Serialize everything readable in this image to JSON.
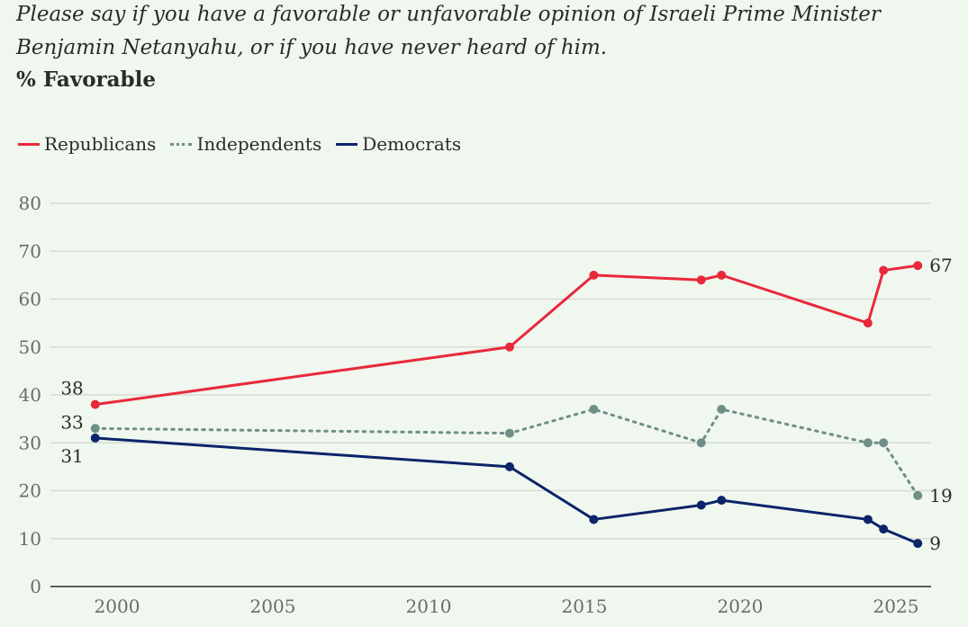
{
  "question": "Please say if you have a favorable or unfavorable opinion of Israeli Prime Minister Benjamin Netanyahu, or if you have never heard of him.",
  "subtitle": "% Favorable",
  "legend": [
    {
      "name": "Republicans",
      "color": "#e8293b",
      "style": "solid"
    },
    {
      "name": "Independents",
      "color": "#6e8f88",
      "style": "dotted"
    },
    {
      "name": "Democrats",
      "color": "#0c2468",
      "style": "solid"
    }
  ],
  "chart_data": {
    "type": "line",
    "title": "% Favorable",
    "xlabel": "",
    "ylabel": "",
    "xlim": [
      1997.7,
      2026.2
    ],
    "ylim": [
      0,
      80
    ],
    "xticks": [
      2000,
      2005,
      2010,
      2015,
      2020,
      2025
    ],
    "yticks": [
      0,
      10,
      20,
      30,
      40,
      50,
      60,
      70,
      80
    ],
    "grid": true,
    "legend_position": "top-left",
    "x": [
      1999.3,
      2012.6,
      2015.3,
      2018.75,
      2019.4,
      2024.1,
      2024.6,
      2025.7
    ],
    "series": [
      {
        "name": "Republicans",
        "color": "#e8293b",
        "style": "solid",
        "values": [
          38,
          50,
          65,
          64,
          65,
          55,
          66,
          67
        ]
      },
      {
        "name": "Independents",
        "color": "#6e8f88",
        "style": "dotted",
        "values": [
          33,
          32,
          37,
          30,
          37,
          30,
          30,
          19
        ]
      },
      {
        "name": "Democrats",
        "color": "#0c2468",
        "style": "solid",
        "values": [
          31,
          25,
          14,
          17,
          18,
          14,
          12,
          9
        ]
      }
    ],
    "annotations": [
      {
        "series": "Republicans",
        "point": "first",
        "text": "38",
        "side": "above-left"
      },
      {
        "series": "Independents",
        "point": "first",
        "text": "33",
        "side": "left"
      },
      {
        "series": "Democrats",
        "point": "first",
        "text": "31",
        "side": "below-left"
      },
      {
        "series": "Republicans",
        "point": "last",
        "text": "67",
        "side": "right"
      },
      {
        "series": "Independents",
        "point": "last",
        "text": "19",
        "side": "right"
      },
      {
        "series": "Democrats",
        "point": "last",
        "text": "9",
        "side": "right"
      }
    ]
  }
}
